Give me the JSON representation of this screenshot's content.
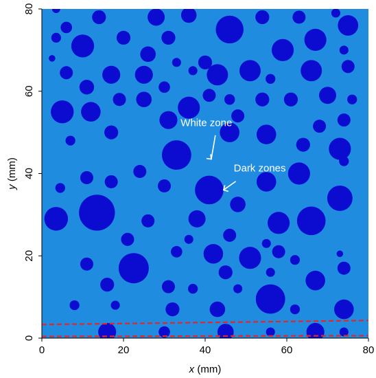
{
  "chart_data": {
    "type": "scatter",
    "description_style": "aggregate particle map",
    "xlabel_var": "x",
    "xlabel_unit": " (mm)",
    "ylabel_var": "y",
    "ylabel_unit": " (mm)",
    "xlim": [
      0,
      80
    ],
    "ylim": [
      0,
      80
    ],
    "xticks": [
      0,
      20,
      40,
      60,
      80
    ],
    "yticks": [
      0,
      20,
      40,
      60,
      80
    ],
    "grid": false,
    "colors": {
      "matrix": "#1f8ce0",
      "particle": "#0b0ccf",
      "guide_line": "#e3262b",
      "annotation": "#ffffff"
    },
    "annotations": [
      {
        "text": "White zone",
        "x": 34,
        "y": 51.5,
        "arrow_to": [
          41.5,
          43.5
        ]
      },
      {
        "text": "Dark zones",
        "x": 47,
        "y": 40.5,
        "arrow_to": [
          44.5,
          36
        ]
      }
    ],
    "guide_lines": [
      {
        "y_start": 3.3,
        "y_end": 4.3
      },
      {
        "y_start": 0.4,
        "y_end": 0.6
      }
    ],
    "particles": [
      {
        "x": 3.5,
        "y": 80,
        "r": 1.0
      },
      {
        "x": 3.5,
        "y": 73,
        "r": 1.2
      },
      {
        "x": 6,
        "y": 75.5,
        "r": 1.4
      },
      {
        "x": 10,
        "y": 71,
        "r": 2.8
      },
      {
        "x": 14,
        "y": 78,
        "r": 1.7
      },
      {
        "x": 20,
        "y": 73,
        "r": 1.7
      },
      {
        "x": 28,
        "y": 78,
        "r": 2.1
      },
      {
        "x": 31,
        "y": 73,
        "r": 1.7
      },
      {
        "x": 36,
        "y": 78.5,
        "r": 1.9
      },
      {
        "x": 46,
        "y": 75,
        "r": 3.4
      },
      {
        "x": 54,
        "y": 78,
        "r": 1.7
      },
      {
        "x": 59,
        "y": 70,
        "r": 2.7
      },
      {
        "x": 63,
        "y": 78,
        "r": 1.6
      },
      {
        "x": 67,
        "y": 72.5,
        "r": 2.7
      },
      {
        "x": 72,
        "y": 79,
        "r": 1.1
      },
      {
        "x": 75,
        "y": 76,
        "r": 2.5
      },
      {
        "x": 74,
        "y": 70,
        "r": 1.1
      },
      {
        "x": 2.5,
        "y": 68,
        "r": 0.8
      },
      {
        "x": 6,
        "y": 64.5,
        "r": 1.6
      },
      {
        "x": 11,
        "y": 61,
        "r": 1.8
      },
      {
        "x": 17,
        "y": 64,
        "r": 2.2
      },
      {
        "x": 26,
        "y": 69,
        "r": 1.9
      },
      {
        "x": 33,
        "y": 67,
        "r": 1.1
      },
      {
        "x": 40,
        "y": 67,
        "r": 1.7
      },
      {
        "x": 37,
        "y": 65,
        "r": 1.1
      },
      {
        "x": 25,
        "y": 64,
        "r": 2.2
      },
      {
        "x": 43,
        "y": 64,
        "r": 2.6
      },
      {
        "x": 51,
        "y": 65,
        "r": 2.6
      },
      {
        "x": 56,
        "y": 63,
        "r": 1.2
      },
      {
        "x": 66,
        "y": 65,
        "r": 2.6
      },
      {
        "x": 75,
        "y": 66,
        "r": 1.6
      },
      {
        "x": 5,
        "y": 55,
        "r": 2.8
      },
      {
        "x": 12,
        "y": 55,
        "r": 2.4
      },
      {
        "x": 19,
        "y": 58,
        "r": 1.6
      },
      {
        "x": 25,
        "y": 58,
        "r": 1.9
      },
      {
        "x": 30,
        "y": 61,
        "r": 1.4
      },
      {
        "x": 31,
        "y": 53,
        "r": 2.2
      },
      {
        "x": 36,
        "y": 56,
        "r": 2.7
      },
      {
        "x": 41,
        "y": 59,
        "r": 1.6
      },
      {
        "x": 46,
        "y": 58,
        "r": 1.3
      },
      {
        "x": 48,
        "y": 54,
        "r": 1.6
      },
      {
        "x": 54,
        "y": 58,
        "r": 1.7
      },
      {
        "x": 61,
        "y": 58,
        "r": 1.7
      },
      {
        "x": 70,
        "y": 59,
        "r": 2.1
      },
      {
        "x": 76,
        "y": 58,
        "r": 1.2
      },
      {
        "x": 68,
        "y": 51.5,
        "r": 1.6
      },
      {
        "x": 74,
        "y": 53,
        "r": 1.6
      },
      {
        "x": 7,
        "y": 48,
        "r": 1.2
      },
      {
        "x": 17,
        "y": 50,
        "r": 1.7
      },
      {
        "x": 33,
        "y": 44.5,
        "r": 3.6
      },
      {
        "x": 46,
        "y": 50,
        "r": 2.4
      },
      {
        "x": 55,
        "y": 49.5,
        "r": 2.4
      },
      {
        "x": 64,
        "y": 47,
        "r": 1.7
      },
      {
        "x": 73,
        "y": 46,
        "r": 2.7
      },
      {
        "x": 11,
        "y": 39,
        "r": 1.6
      },
      {
        "x": 17,
        "y": 38,
        "r": 1.6
      },
      {
        "x": 24,
        "y": 40.5,
        "r": 1.6
      },
      {
        "x": 30,
        "y": 37,
        "r": 1.6
      },
      {
        "x": 41,
        "y": 36,
        "r": 3.5
      },
      {
        "x": 48,
        "y": 32.5,
        "r": 1.9
      },
      {
        "x": 55,
        "y": 38,
        "r": 2.4
      },
      {
        "x": 63,
        "y": 40,
        "r": 2.7
      },
      {
        "x": 74,
        "y": 43,
        "r": 1.2
      },
      {
        "x": 73,
        "y": 34,
        "r": 3.1
      },
      {
        "x": 4.5,
        "y": 36.5,
        "r": 1.2
      },
      {
        "x": 3.5,
        "y": 29,
        "r": 2.9
      },
      {
        "x": 13.5,
        "y": 30.5,
        "r": 4.4
      },
      {
        "x": 26,
        "y": 28.5,
        "r": 1.6
      },
      {
        "x": 38,
        "y": 29,
        "r": 2.1
      },
      {
        "x": 58,
        "y": 28,
        "r": 2.7
      },
      {
        "x": 66,
        "y": 28.5,
        "r": 3.5
      },
      {
        "x": 21,
        "y": 24,
        "r": 1.6
      },
      {
        "x": 36,
        "y": 24,
        "r": 1.1
      },
      {
        "x": 46,
        "y": 25,
        "r": 1.6
      },
      {
        "x": 55,
        "y": 23,
        "r": 1.1
      },
      {
        "x": 33,
        "y": 21,
        "r": 1.4
      },
      {
        "x": 42,
        "y": 20.5,
        "r": 2.4
      },
      {
        "x": 51,
        "y": 19.5,
        "r": 2.7
      },
      {
        "x": 58,
        "y": 21,
        "r": 1.6
      },
      {
        "x": 62,
        "y": 19,
        "r": 1.2
      },
      {
        "x": 73,
        "y": 20.5,
        "r": 0.8
      },
      {
        "x": 11,
        "y": 18,
        "r": 1.6
      },
      {
        "x": 22.5,
        "y": 17,
        "r": 3.7
      },
      {
        "x": 31,
        "y": 12.5,
        "r": 1.6
      },
      {
        "x": 16,
        "y": 13,
        "r": 1.7
      },
      {
        "x": 37,
        "y": 12,
        "r": 1.2
      },
      {
        "x": 45,
        "y": 16,
        "r": 1.7
      },
      {
        "x": 48,
        "y": 12,
        "r": 1.1
      },
      {
        "x": 56,
        "y": 16,
        "r": 1.1
      },
      {
        "x": 56,
        "y": 9.5,
        "r": 3.6
      },
      {
        "x": 67,
        "y": 14,
        "r": 2.4
      },
      {
        "x": 74,
        "y": 17,
        "r": 1.6
      },
      {
        "x": 8,
        "y": 8,
        "r": 1.2
      },
      {
        "x": 18,
        "y": 8,
        "r": 1.1
      },
      {
        "x": 32,
        "y": 7,
        "r": 1.7
      },
      {
        "x": 43,
        "y": 7,
        "r": 1.9
      },
      {
        "x": 62,
        "y": 7,
        "r": 1.2
      },
      {
        "x": 74,
        "y": 7,
        "r": 2.4
      },
      {
        "x": 16,
        "y": 1.5,
        "r": 2.2
      },
      {
        "x": 30,
        "y": 1.5,
        "r": 1.4
      },
      {
        "x": 45,
        "y": 1.5,
        "r": 2.0
      },
      {
        "x": 56,
        "y": 1.5,
        "r": 1.1
      },
      {
        "x": 67,
        "y": 1.5,
        "r": 2.2
      },
      {
        "x": 74,
        "y": 1.5,
        "r": 1.1
      }
    ]
  }
}
